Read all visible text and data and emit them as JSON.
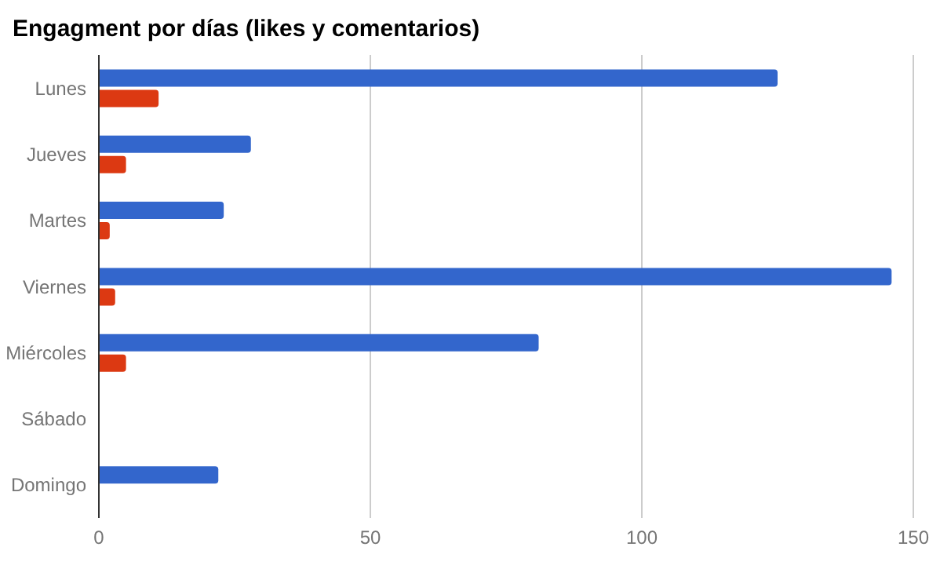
{
  "chart_data": {
    "type": "bar",
    "orientation": "horizontal",
    "title": "Engagment por días (likes y comentarios)",
    "categories": [
      "Lunes",
      "Jueves",
      "Martes",
      "Viernes",
      "Miércoles",
      "Sábado",
      "Domingo"
    ],
    "series": [
      {
        "color": "#3366cc",
        "values": [
          125,
          28,
          23,
          146,
          81,
          0,
          22
        ]
      },
      {
        "color": "#dc3912",
        "values": [
          11,
          5,
          2,
          3,
          5,
          0,
          0
        ]
      }
    ],
    "xlim": [
      0,
      150
    ],
    "xticks": [
      0,
      50,
      100,
      150
    ],
    "grid": "x",
    "legend": false
  }
}
